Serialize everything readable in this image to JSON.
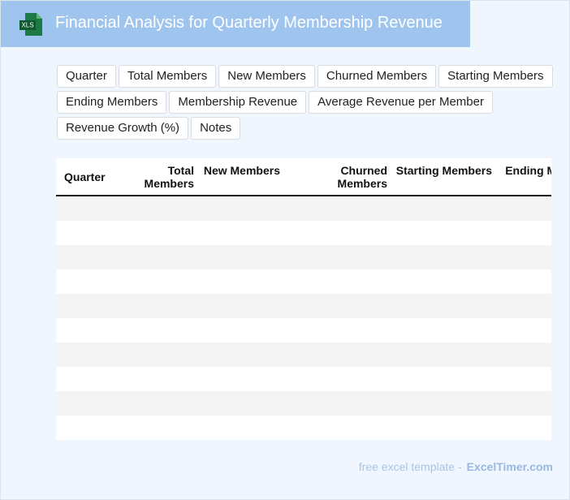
{
  "header": {
    "icon": "XLS",
    "title": "Financial Analysis for Quarterly Membership Revenue"
  },
  "tags": [
    "Quarter",
    "Total Members",
    "New Members",
    "Churned Members",
    "Starting Members",
    "Ending Members",
    "Membership Revenue",
    "Average Revenue per Member",
    "Revenue Growth (%)",
    "Notes"
  ],
  "table": {
    "columns": [
      "Quarter",
      "Total Members",
      "New Members",
      "Churned Members",
      "Starting Members",
      "Ending Members"
    ]
  },
  "footer": {
    "text": "free excel template -",
    "brand": "ExcelTimer.com"
  }
}
